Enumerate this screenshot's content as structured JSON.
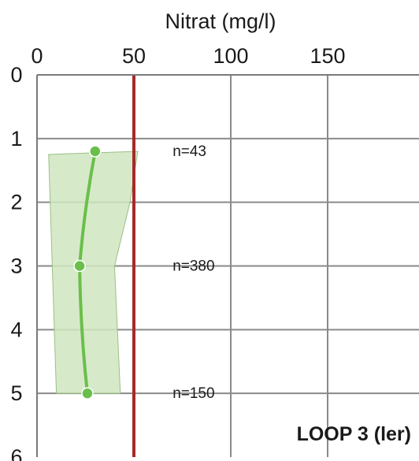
{
  "chart_data": {
    "type": "line",
    "xlabel": "Nitrat (mg/l)",
    "ylabel": "",
    "x_ticks": [
      "0",
      "50",
      "100",
      "150"
    ],
    "y_ticks": [
      "0",
      "1",
      "2",
      "3",
      "4",
      "5",
      "6"
    ],
    "xlim": [
      0,
      200
    ],
    "ylim": [
      0,
      6
    ],
    "y_inverted": true,
    "x_axis_position": "top",
    "grid": true,
    "threshold": {
      "x": 50,
      "color": "#a52a2a"
    },
    "series": [
      {
        "color": "#6abf4b",
        "points": [
          {
            "x": 30,
            "y": 1.2
          },
          {
            "x": 22,
            "y": 3.0
          },
          {
            "x": 26,
            "y": 5.0
          }
        ]
      }
    ],
    "range_band": {
      "color": "#cfe6bf",
      "left": [
        {
          "x": 6,
          "y": 1.25
        },
        {
          "x": 10,
          "y": 5.0
        }
      ],
      "right": [
        {
          "x": 52,
          "y": 1.2
        },
        {
          "x": 48,
          "y": 2.0
        },
        {
          "x": 40,
          "y": 3.0
        },
        {
          "x": 43,
          "y": 5.0
        }
      ]
    },
    "annotations": [
      {
        "text": "n=43",
        "x": 70,
        "y": 1.2
      },
      {
        "text": "n=380",
        "x": 70,
        "y": 3.0
      },
      {
        "text": "n=150",
        "x": 70,
        "y": 5.0
      }
    ],
    "panel_label": "LOOP 3 (ler)"
  }
}
